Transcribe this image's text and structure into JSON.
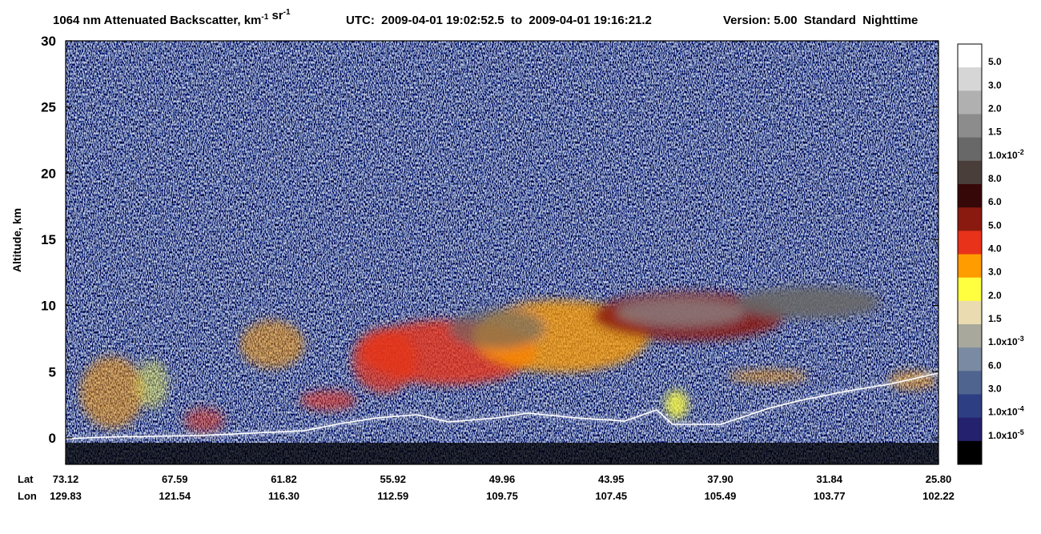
{
  "chart_data": {
    "type": "curtain",
    "title": {
      "parts": [
        {
          "text": "1064 nm Attenuated Backscatter, km"
        },
        {
          "sup": "-1"
        },
        {
          "text": " sr"
        },
        {
          "sup": "-1"
        }
      ],
      "utc": "UTC:  2009-04-01 19:02:52.5  to  2009-04-01 19:16:21.2",
      "version": "Version: 5.00  Standard  Nighttime"
    },
    "y_label": "Altitude, km",
    "ylim": [
      -2,
      30
    ],
    "yticks": [
      0,
      5,
      10,
      15,
      20,
      25,
      30
    ],
    "x_rows": [
      {
        "name": "Lat",
        "labels": [
          "73.12",
          "67.59",
          "61.82",
          "55.92",
          "49.96",
          "43.95",
          "37.90",
          "31.84",
          "25.80"
        ]
      },
      {
        "name": "Lon",
        "labels": [
          "129.83",
          "121.54",
          "116.30",
          "112.59",
          "109.75",
          "107.45",
          "105.49",
          "103.77",
          "102.22"
        ]
      }
    ],
    "colorbar": {
      "colors": [
        "#ffffff",
        "#d6d6d6",
        "#b0b0b0",
        "#8c8c8c",
        "#686868",
        "#4a3e3b",
        "#370808",
        "#8a1a10",
        "#e8321a",
        "#ff9c00",
        "#ffff40",
        "#eadcb0",
        "#a8a89c",
        "#7a8aa2",
        "#4f648e",
        "#2e3e82",
        "#24226e",
        "#000000"
      ],
      "labels": [
        {
          "text": "5.0"
        },
        {
          "text": "3.0"
        },
        {
          "text": "2.0"
        },
        {
          "text": "1.5"
        },
        {
          "text": "1.0x10",
          "sup": "-2"
        },
        {
          "text": "8.0"
        },
        {
          "text": "6.0"
        },
        {
          "text": "5.0"
        },
        {
          "text": "4.0"
        },
        {
          "text": "3.0"
        },
        {
          "text": "2.0"
        },
        {
          "text": "1.5"
        },
        {
          "text": "1.0x10",
          "sup": "-3"
        },
        {
          "text": "6.0"
        },
        {
          "text": "3.0"
        },
        {
          "text": "1.0x10",
          "sup": "-4"
        },
        {
          "text": "1.0x10",
          "sup": "-5"
        }
      ]
    }
  }
}
